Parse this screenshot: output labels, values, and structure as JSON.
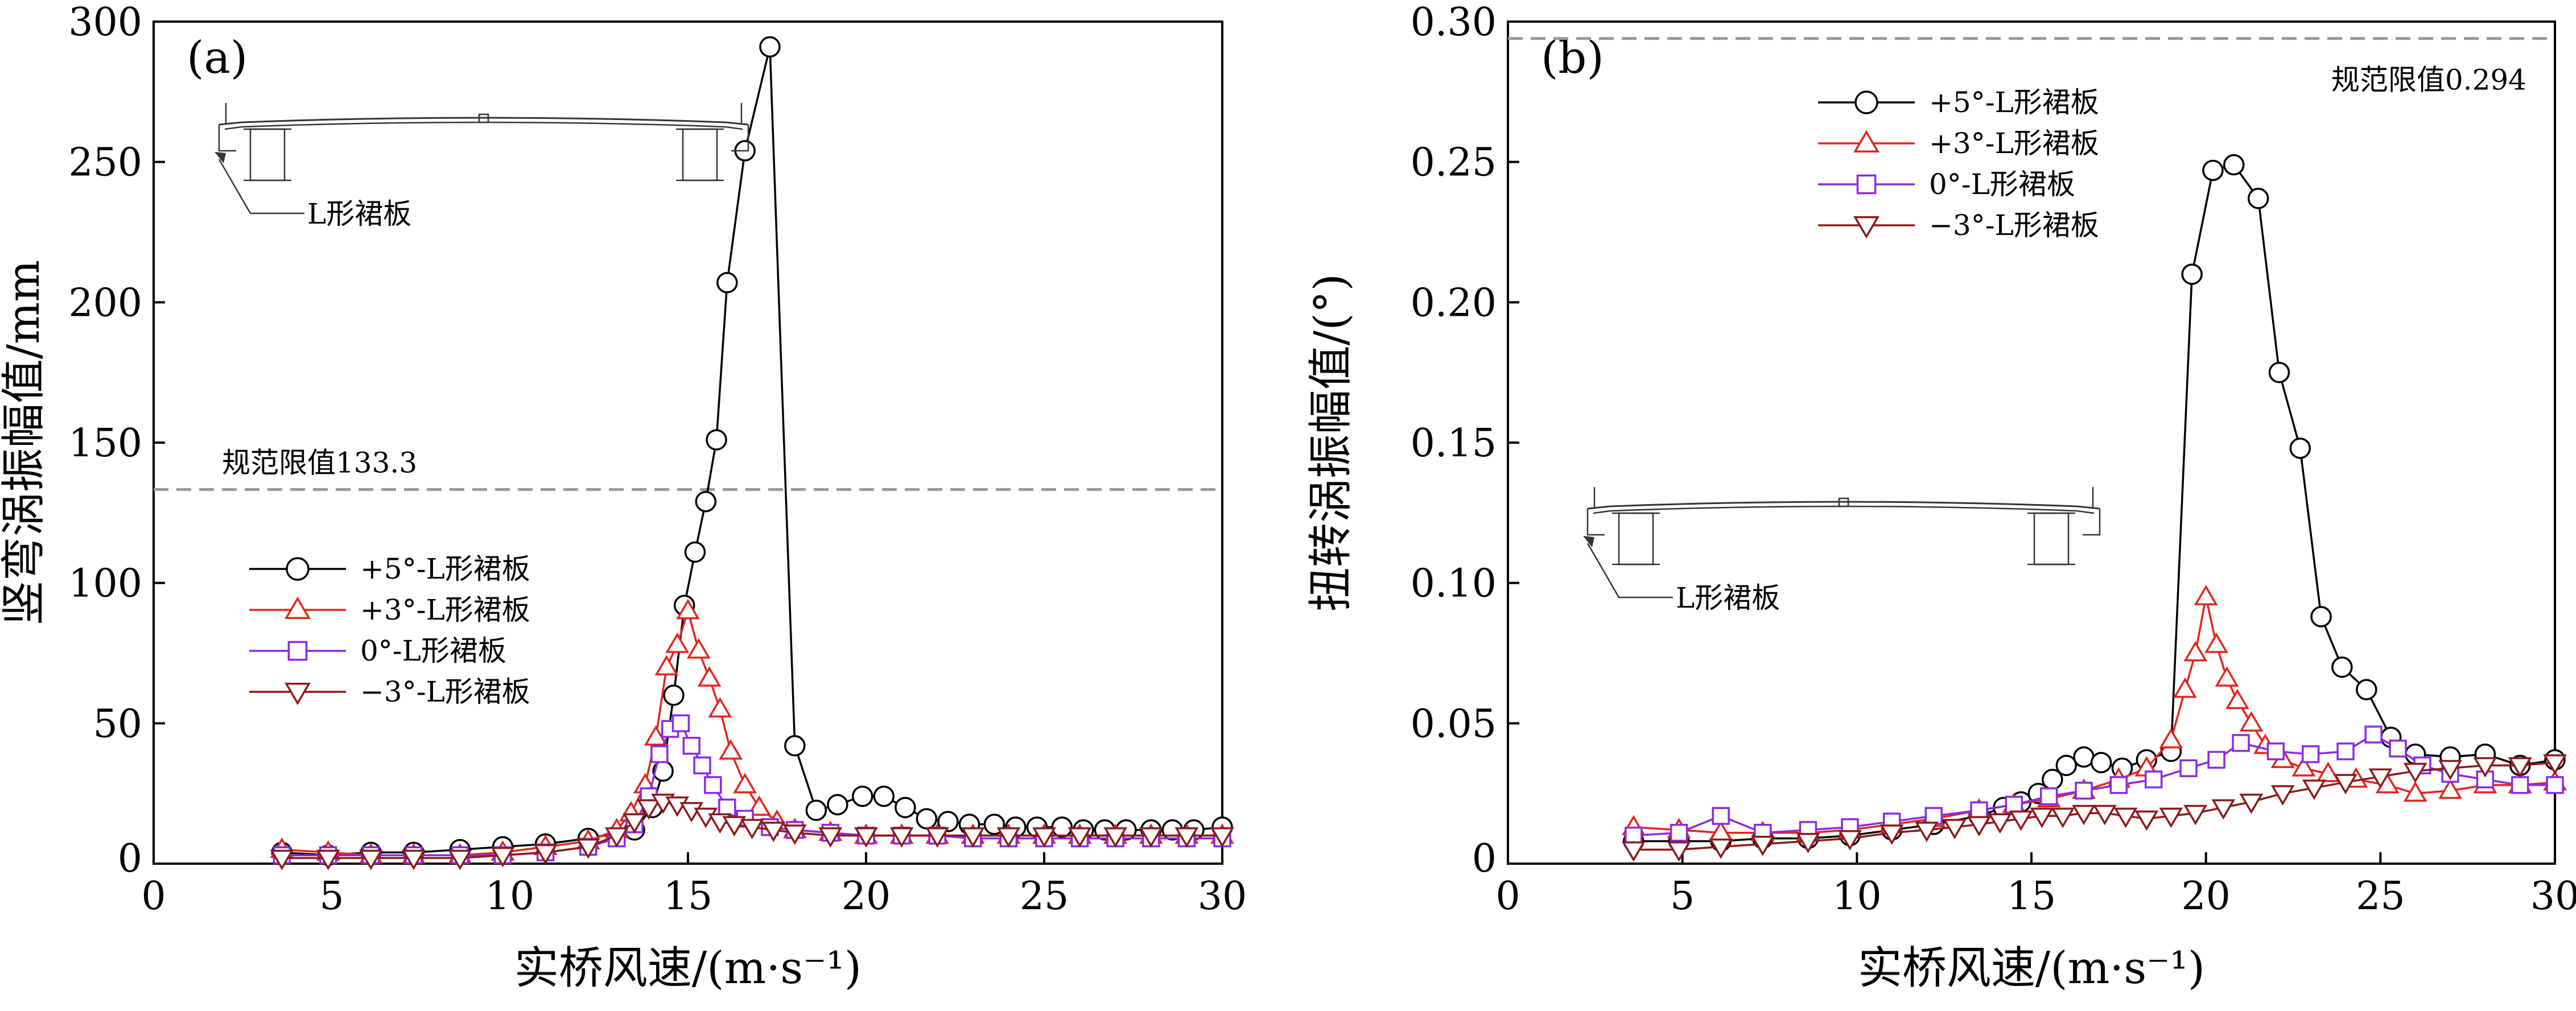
{
  "chart_data": [
    {
      "type": "line",
      "panel_label": "(a)",
      "xlabel": "实桥风速/(m·s⁻¹)",
      "ylabel": "竖弯涡振幅值/mm",
      "xlim": [
        0,
        30
      ],
      "ylim": [
        0,
        300
      ],
      "x_ticks": [
        "0",
        "5",
        "10",
        "15",
        "20",
        "25",
        "30"
      ],
      "y_ticks": [
        "0",
        "50",
        "100",
        "150",
        "200",
        "250",
        "300"
      ],
      "grid": false,
      "legend_position": "center-left",
      "limit_line": {
        "value": 133.3,
        "label": "规范限值133.3"
      },
      "inset_label": "L形裙板",
      "series": [
        {
          "name": "+5°-L形裙板",
          "color": "#000000",
          "marker": "circle",
          "x": [
            3.6,
            4.9,
            6.1,
            7.3,
            8.6,
            9.8,
            11.0,
            12.2,
            13.5,
            14.0,
            14.3,
            14.6,
            14.9,
            15.2,
            15.5,
            15.8,
            16.1,
            16.6,
            17.3,
            18.0,
            18.6,
            19.2,
            19.9,
            20.5,
            21.1,
            21.7,
            22.3,
            22.9,
            23.6,
            24.2,
            24.8,
            25.5,
            26.1,
            26.7,
            27.3,
            28.0,
            28.6,
            29.2,
            30.0
          ],
          "y": [
            4,
            3,
            4,
            4,
            5,
            6,
            7,
            9,
            12,
            20,
            33,
            60,
            92,
            111,
            129,
            151,
            207,
            254,
            291,
            42,
            19,
            21,
            24,
            24,
            20,
            16,
            15,
            14,
            14,
            13,
            13,
            13,
            12,
            12,
            12,
            12,
            12,
            12,
            13
          ]
        },
        {
          "name": "+3°-L形裙板",
          "color": "#e3241c",
          "marker": "triangle-up",
          "x": [
            3.6,
            4.9,
            6.1,
            7.3,
            8.6,
            9.8,
            11.0,
            12.2,
            13.0,
            13.4,
            13.8,
            14.1,
            14.4,
            14.7,
            15.0,
            15.3,
            15.6,
            15.9,
            16.2,
            16.6,
            17.0,
            17.5,
            18.0,
            19.0,
            20.0,
            21.0,
            22.0,
            23.0,
            24.0,
            25.0,
            26.0,
            27.0,
            28.0,
            29.0,
            30.0
          ],
          "y": [
            5,
            4,
            3,
            3,
            3,
            4,
            6,
            8,
            12,
            18,
            28,
            45,
            70,
            78,
            90,
            76,
            66,
            55,
            40,
            28,
            20,
            15,
            12,
            11,
            10,
            10,
            10,
            10,
            10,
            10,
            10,
            10,
            10,
            10,
            10
          ]
        },
        {
          "name": "0°-L形裙板",
          "color": "#8a2be2",
          "marker": "square",
          "x": [
            3.6,
            4.9,
            6.1,
            7.3,
            8.6,
            9.8,
            11.0,
            12.2,
            13.0,
            13.5,
            13.9,
            14.2,
            14.5,
            14.8,
            15.1,
            15.4,
            15.7,
            16.1,
            16.6,
            17.3,
            18.0,
            19.0,
            20.0,
            21.0,
            22.0,
            23.0,
            24.0,
            25.0,
            26.0,
            27.0,
            28.0,
            29.0,
            30.0
          ],
          "y": [
            3,
            3,
            3,
            3,
            3,
            3,
            4,
            6,
            9,
            14,
            24,
            39,
            48,
            50,
            42,
            35,
            28,
            20,
            16,
            13,
            12,
            11,
            10,
            10,
            10,
            9,
            9,
            9,
            9,
            9,
            9,
            9,
            9
          ]
        },
        {
          "name": "−3°-L形裙板",
          "color": "#8b1a1a",
          "marker": "triangle-down",
          "x": [
            3.6,
            4.9,
            6.1,
            7.3,
            8.6,
            9.8,
            11.0,
            12.2,
            13.0,
            13.5,
            13.9,
            14.3,
            14.7,
            15.1,
            15.5,
            15.9,
            16.3,
            16.8,
            17.4,
            18.0,
            19.0,
            20.0,
            21.0,
            22.0,
            23.0,
            24.0,
            25.0,
            26.0,
            27.0,
            28.0,
            29.0,
            30.0
          ],
          "y": [
            2,
            2,
            2,
            2,
            2,
            3,
            4,
            6,
            10,
            15,
            20,
            22,
            21,
            19,
            17,
            15,
            14,
            13,
            12,
            11,
            10,
            10,
            10,
            10,
            10,
            10,
            10,
            10,
            10,
            10,
            10,
            10
          ]
        }
      ]
    },
    {
      "type": "line",
      "panel_label": "(b)",
      "xlabel": "实桥风速/(m·s⁻¹)",
      "ylabel": "扭转涡振幅值/(°)",
      "xlim": [
        0,
        30
      ],
      "ylim": [
        0,
        0.3
      ],
      "x_ticks": [
        "0",
        "5",
        "10",
        "15",
        "20",
        "25",
        "30"
      ],
      "y_ticks": [
        "0",
        "0.05",
        "0.10",
        "0.15",
        "0.20",
        "0.25",
        "0.30"
      ],
      "grid": false,
      "legend_position": "top-left",
      "limit_line": {
        "value": 0.294,
        "label": "规范限值0.294"
      },
      "inset_label": "L形裙板",
      "series": [
        {
          "name": "+5°-L形裙板",
          "color": "#000000",
          "marker": "circle",
          "x": [
            3.6,
            4.9,
            6.1,
            7.3,
            8.6,
            9.8,
            11.0,
            12.2,
            13.5,
            14.2,
            14.7,
            15.2,
            15.6,
            16.0,
            16.5,
            17.0,
            17.6,
            18.3,
            19.0,
            19.6,
            20.2,
            20.8,
            21.5,
            22.1,
            22.7,
            23.3,
            23.9,
            24.6,
            25.3,
            26.0,
            27.0,
            28.0,
            29.0,
            30.0
          ],
          "y": [
            0.008,
            0.008,
            0.008,
            0.009,
            0.009,
            0.01,
            0.012,
            0.014,
            0.017,
            0.02,
            0.022,
            0.025,
            0.03,
            0.035,
            0.038,
            0.036,
            0.034,
            0.037,
            0.04,
            0.21,
            0.247,
            0.249,
            0.237,
            0.175,
            0.148,
            0.088,
            0.07,
            0.062,
            0.045,
            0.039,
            0.038,
            0.039,
            0.035,
            0.037
          ]
        },
        {
          "name": "+3°-L形裙板",
          "color": "#e3241c",
          "marker": "triangle-up",
          "x": [
            3.6,
            4.9,
            6.1,
            7.3,
            8.6,
            9.8,
            11.0,
            12.2,
            13.5,
            14.5,
            15.5,
            16.5,
            17.5,
            18.3,
            19.0,
            19.4,
            19.7,
            20.0,
            20.3,
            20.6,
            20.9,
            21.3,
            21.7,
            22.2,
            22.8,
            23.5,
            24.3,
            25.2,
            26.0,
            27.0,
            28.0,
            29.0,
            30.0
          ],
          "y": [
            0.013,
            0.012,
            0.011,
            0.011,
            0.011,
            0.012,
            0.014,
            0.016,
            0.019,
            0.021,
            0.023,
            0.026,
            0.03,
            0.034,
            0.044,
            0.062,
            0.075,
            0.095,
            0.078,
            0.066,
            0.058,
            0.05,
            0.042,
            0.037,
            0.034,
            0.032,
            0.03,
            0.028,
            0.025,
            0.026,
            0.028,
            0.028,
            0.029
          ]
        },
        {
          "name": "0°-L形裙板",
          "color": "#8a2be2",
          "marker": "square",
          "x": [
            3.6,
            4.9,
            6.1,
            7.3,
            8.6,
            9.8,
            11.0,
            12.2,
            13.5,
            14.5,
            15.5,
            16.5,
            17.5,
            18.5,
            19.5,
            20.3,
            21.0,
            22.0,
            23.0,
            24.0,
            24.8,
            25.5,
            26.2,
            27.0,
            28.0,
            29.0,
            30.0
          ],
          "y": [
            0.01,
            0.011,
            0.017,
            0.011,
            0.012,
            0.013,
            0.015,
            0.017,
            0.019,
            0.021,
            0.024,
            0.026,
            0.028,
            0.03,
            0.034,
            0.037,
            0.043,
            0.04,
            0.039,
            0.04,
            0.046,
            0.041,
            0.035,
            0.032,
            0.03,
            0.028,
            0.028
          ]
        },
        {
          "name": "−3°-L形裙板",
          "color": "#8b1a1a",
          "marker": "triangle-down",
          "x": [
            3.6,
            4.9,
            6.1,
            7.3,
            8.6,
            9.8,
            11.0,
            12.0,
            12.8,
            13.5,
            14.1,
            14.7,
            15.3,
            15.9,
            16.5,
            17.1,
            17.7,
            18.3,
            19.0,
            19.7,
            20.5,
            21.3,
            22.2,
            23.1,
            24.0,
            25.0,
            26.0,
            27.0,
            28.0,
            29.0,
            30.0
          ],
          "y": [
            0.005,
            0.005,
            0.006,
            0.007,
            0.008,
            0.009,
            0.011,
            0.012,
            0.013,
            0.014,
            0.015,
            0.016,
            0.017,
            0.017,
            0.018,
            0.018,
            0.017,
            0.016,
            0.017,
            0.018,
            0.02,
            0.022,
            0.025,
            0.027,
            0.029,
            0.031,
            0.033,
            0.034,
            0.035,
            0.035,
            0.036
          ]
        }
      ]
    }
  ]
}
